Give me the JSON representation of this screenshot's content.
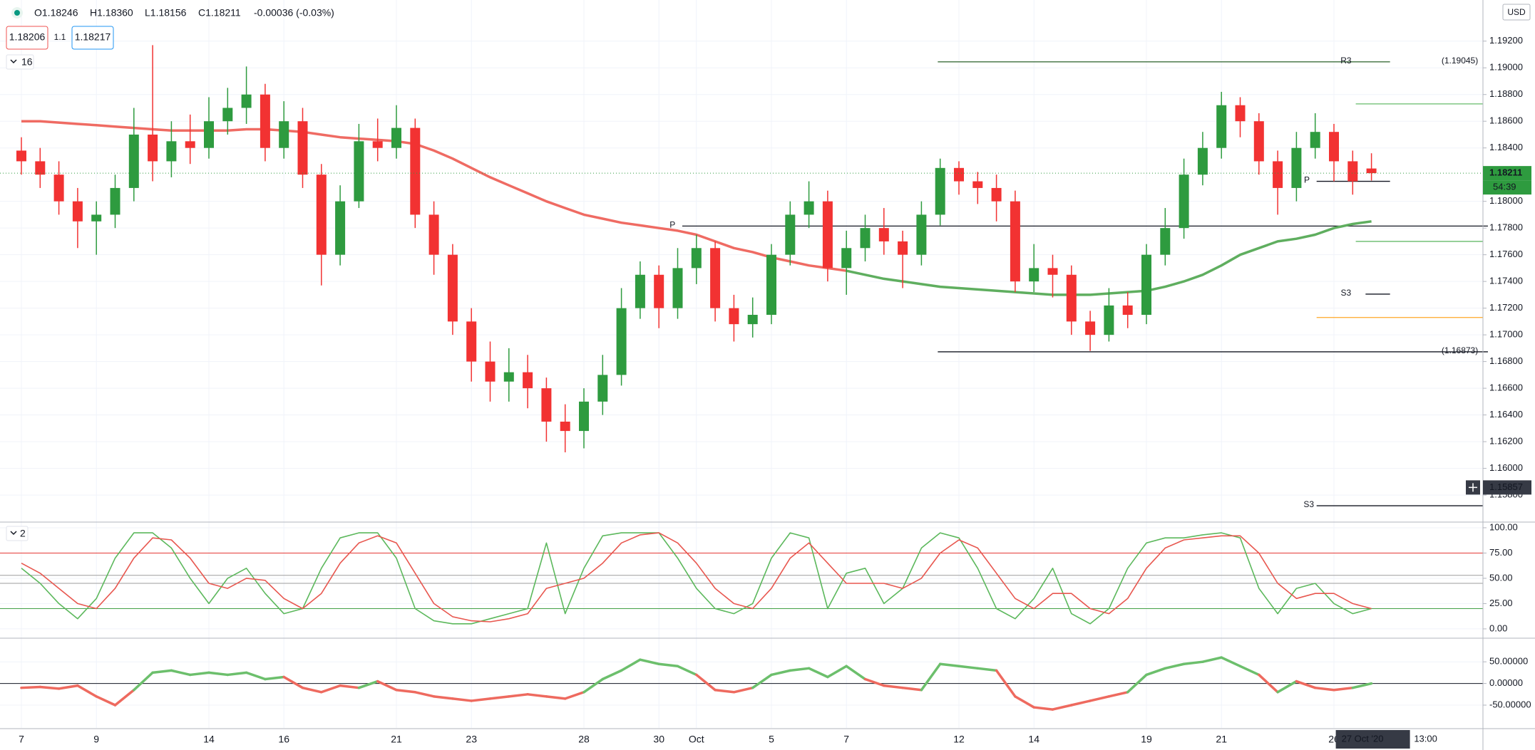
{
  "header": {
    "ohlc": [
      "O1.18246",
      "H1.18360",
      "L1.18156",
      "C1.18211",
      "-0.00036 (-0.03%)"
    ],
    "bid": "1.18206",
    "spread": "1.1",
    "ask": "1.18217",
    "main_pane_tag": "16",
    "osc_pane_tag": "2",
    "currency": "USD",
    "countdown": "54:39",
    "time_date": "27 Oct '20",
    "time_clock": "13:00"
  },
  "chart_data": [
    {
      "type": "candlestick",
      "categories": [
        "7",
        null,
        null,
        null,
        "9",
        null,
        null,
        null,
        null,
        null,
        "14",
        null,
        null,
        null,
        "16",
        null,
        null,
        null,
        null,
        null,
        "21",
        null,
        null,
        null,
        "23",
        null,
        null,
        null,
        null,
        null,
        "28",
        null,
        null,
        null,
        "30",
        null,
        "Oct",
        null,
        null,
        null,
        "5",
        null,
        null,
        null,
        "7",
        null,
        null,
        null,
        null,
        null,
        "12",
        null,
        null,
        null,
        "14",
        null,
        null,
        null,
        null,
        null,
        "19",
        null,
        null,
        null,
        "21",
        null,
        null,
        null,
        null,
        null,
        "26",
        null,
        null
      ],
      "open": [
        1.1838,
        1.183,
        1.182,
        1.18,
        1.1785,
        1.179,
        1.181,
        1.185,
        1.183,
        1.1845,
        1.184,
        1.186,
        1.187,
        1.188,
        1.184,
        1.186,
        1.182,
        1.176,
        1.18,
        1.1845,
        1.184,
        1.1855,
        1.179,
        1.176,
        1.171,
        1.168,
        1.1665,
        1.1672,
        1.166,
        1.1635,
        1.1628,
        1.165,
        1.167,
        1.172,
        1.1745,
        1.172,
        1.175,
        1.1765,
        1.172,
        1.1708,
        1.1715,
        1.176,
        1.179,
        1.18,
        1.175,
        1.1765,
        1.178,
        1.177,
        1.176,
        1.179,
        1.1825,
        1.1815,
        1.181,
        1.18,
        1.174,
        1.175,
        1.1745,
        1.171,
        1.17,
        1.1722,
        1.1715,
        1.176,
        1.178,
        1.182,
        1.184,
        1.1872,
        1.186,
        1.183,
        1.181,
        1.184,
        1.1852,
        1.183,
        1.18246
      ],
      "high": [
        1.1848,
        1.184,
        1.183,
        1.181,
        1.18,
        1.182,
        1.187,
        1.1917,
        1.186,
        1.1865,
        1.1878,
        1.1885,
        1.1901,
        1.1888,
        1.1875,
        1.187,
        1.1828,
        1.1812,
        1.1858,
        1.1862,
        1.1872,
        1.1862,
        1.18,
        1.1768,
        1.172,
        1.1695,
        1.169,
        1.1685,
        1.1668,
        1.1648,
        1.166,
        1.1685,
        1.1735,
        1.1755,
        1.1752,
        1.1765,
        1.1775,
        1.177,
        1.173,
        1.1728,
        1.1768,
        1.18,
        1.1815,
        1.1808,
        1.1778,
        1.179,
        1.1795,
        1.1778,
        1.18,
        1.1832,
        1.183,
        1.1822,
        1.182,
        1.1808,
        1.1768,
        1.176,
        1.1752,
        1.1718,
        1.1735,
        1.1732,
        1.1768,
        1.1795,
        1.1832,
        1.1852,
        1.1882,
        1.1878,
        1.1866,
        1.1838,
        1.1852,
        1.1866,
        1.1858,
        1.1838,
        1.1836
      ],
      "low": [
        1.182,
        1.181,
        1.179,
        1.1765,
        1.176,
        1.178,
        1.18,
        1.1815,
        1.1818,
        1.1828,
        1.1832,
        1.185,
        1.1858,
        1.183,
        1.1832,
        1.181,
        1.1737,
        1.1752,
        1.1795,
        1.183,
        1.1832,
        1.178,
        1.1745,
        1.17,
        1.1665,
        1.165,
        1.165,
        1.1645,
        1.162,
        1.1612,
        1.1615,
        1.164,
        1.1662,
        1.1712,
        1.1705,
        1.1712,
        1.1738,
        1.171,
        1.1695,
        1.1698,
        1.1708,
        1.1752,
        1.178,
        1.174,
        1.173,
        1.1755,
        1.176,
        1.1735,
        1.1752,
        1.1782,
        1.1805,
        1.1798,
        1.1785,
        1.1732,
        1.1732,
        1.1728,
        1.17,
        1.1688,
        1.1695,
        1.1705,
        1.1708,
        1.1752,
        1.1772,
        1.1812,
        1.1832,
        1.1848,
        1.182,
        1.179,
        1.18,
        1.1832,
        1.1815,
        1.1805,
        1.18156
      ],
      "close": [
        1.183,
        1.182,
        1.18,
        1.1785,
        1.179,
        1.181,
        1.185,
        1.183,
        1.1845,
        1.184,
        1.186,
        1.187,
        1.188,
        1.184,
        1.186,
        1.182,
        1.176,
        1.18,
        1.1845,
        1.184,
        1.1855,
        1.179,
        1.176,
        1.171,
        1.168,
        1.1665,
        1.1672,
        1.166,
        1.1635,
        1.1628,
        1.165,
        1.167,
        1.172,
        1.1745,
        1.172,
        1.175,
        1.1765,
        1.172,
        1.1708,
        1.1715,
        1.176,
        1.179,
        1.18,
        1.175,
        1.1765,
        1.178,
        1.177,
        1.176,
        1.179,
        1.1825,
        1.1815,
        1.181,
        1.18,
        1.174,
        1.175,
        1.1745,
        1.171,
        1.17,
        1.1722,
        1.1715,
        1.176,
        1.178,
        1.182,
        1.184,
        1.1872,
        1.186,
        1.183,
        1.181,
        1.184,
        1.1852,
        1.183,
        1.1815,
        1.18211
      ],
      "up_color": "#2e9b3f",
      "down_color": "#f23232",
      "overlays": [
        {
          "color": "#ef6b63",
          "values": [
            1.186,
            1.186,
            1.1859,
            1.1858,
            1.1857,
            1.1856,
            1.1855,
            1.1854,
            1.1853,
            1.1853,
            1.1853,
            1.1853,
            1.1854,
            1.1854,
            1.1853,
            1.1852,
            1.185,
            1.1848,
            1.1847,
            1.1846,
            1.1845,
            1.1843,
            1.1838,
            1.1832,
            1.1825,
            1.1818,
            1.1812,
            1.1806,
            1.18,
            1.1795,
            1.179,
            1.1787,
            1.1784,
            1.1782,
            1.178,
            1.1778,
            1.1775,
            1.177,
            1.1765,
            1.1762,
            1.1758,
            1.1755,
            1.1752,
            1.175,
            1.1748,
            null,
            null,
            null,
            null,
            null,
            null,
            null,
            null,
            null,
            null,
            null,
            null,
            null,
            null,
            null,
            null,
            null,
            null,
            null,
            null,
            null,
            null,
            null,
            null,
            null,
            null,
            null,
            null
          ]
        },
        {
          "color": "#5fae5f",
          "values": [
            null,
            null,
            null,
            null,
            null,
            null,
            null,
            null,
            null,
            null,
            null,
            null,
            null,
            null,
            null,
            null,
            null,
            null,
            null,
            null,
            null,
            null,
            null,
            null,
            null,
            null,
            null,
            null,
            null,
            null,
            null,
            null,
            null,
            null,
            null,
            null,
            null,
            null,
            null,
            null,
            null,
            null,
            null,
            null,
            1.1748,
            1.1745,
            1.1742,
            1.174,
            1.1738,
            1.1736,
            1.1735,
            1.1734,
            1.1733,
            1.1732,
            1.1731,
            1.173,
            1.173,
            1.173,
            1.1731,
            1.1732,
            1.1733,
            1.1736,
            1.174,
            1.1745,
            1.1752,
            1.176,
            1.1765,
            1.177,
            1.1772,
            1.1775,
            1.178,
            1.1783,
            1.1785
          ]
        }
      ],
      "levels": [
        {
          "label": "R3",
          "price_label": "(1.19045)",
          "value": 1.19045,
          "color": "#3c6e3c"
        },
        {
          "label": "P",
          "value": 1.17815,
          "color": "#131722"
        },
        {
          "price_label": "(1.16873)",
          "value": 1.16873,
          "color": "#131722"
        },
        {
          "label": "S3",
          "value": 1.17305,
          "color": "#131722"
        },
        {
          "label": "P",
          "value": 1.1815,
          "color": "#131722"
        },
        {
          "label": "S3",
          "value": 1.1572,
          "color": "#131722"
        },
        {
          "value": 1.1873,
          "color": "#66bb6a"
        },
        {
          "value": 1.177,
          "color": "#66bb6a"
        },
        {
          "value": 1.1713,
          "color": "#ffa726"
        }
      ],
      "crosshair": 1.15857,
      "ylim": [
        1.15603,
        1.19508
      ],
      "yticks": [
        {
          "value": 1.158,
          "label": "1.15800"
        },
        {
          "value": 1.16,
          "label": "1.16000"
        },
        {
          "value": 1.162,
          "label": "1.16200"
        },
        {
          "value": 1.164,
          "label": "1.16400"
        },
        {
          "value": 1.166,
          "label": "1.16600"
        },
        {
          "value": 1.168,
          "label": "1.16800"
        },
        {
          "value": 1.17,
          "label": "1.17000"
        },
        {
          "value": 1.172,
          "label": "1.17200"
        },
        {
          "value": 1.174,
          "label": "1.17400"
        },
        {
          "value": 1.176,
          "label": "1.17600"
        },
        {
          "value": 1.178,
          "label": "1.17800"
        },
        {
          "value": 1.18,
          "label": "1.18000"
        },
        {
          "value": 1.184,
          "label": "1.18400"
        },
        {
          "value": 1.186,
          "label": "1.18600"
        },
        {
          "value": 1.188,
          "label": "1.18800"
        },
        {
          "value": 1.19,
          "label": "1.19000"
        },
        {
          "value": 1.192,
          "label": "1.19200"
        }
      ],
      "grid": true
    },
    {
      "type": "line",
      "series": [
        {
          "color": "#5cb85c",
          "values": [
            60,
            45,
            25,
            10,
            30,
            70,
            95,
            95,
            80,
            50,
            25,
            50,
            60,
            35,
            15,
            20,
            60,
            90,
            95,
            95,
            70,
            20,
            8,
            5,
            5,
            10,
            15,
            20,
            85,
            15,
            60,
            92,
            95,
            95,
            95,
            70,
            40,
            20,
            15,
            25,
            70,
            95,
            90,
            20,
            55,
            60,
            25,
            40,
            80,
            95,
            90,
            60,
            20,
            10,
            30,
            60,
            15,
            5,
            20,
            60,
            85,
            90,
            90,
            93,
            95,
            90,
            40,
            15,
            40,
            45,
            25,
            15,
            20
          ]
        },
        {
          "color": "#e8574f",
          "values": [
            65,
            55,
            40,
            25,
            20,
            40,
            70,
            90,
            88,
            70,
            45,
            40,
            50,
            48,
            30,
            20,
            35,
            65,
            85,
            92,
            85,
            55,
            25,
            12,
            8,
            7,
            10,
            15,
            40,
            45,
            50,
            65,
            85,
            93,
            95,
            85,
            65,
            40,
            25,
            20,
            40,
            70,
            85,
            65,
            45,
            45,
            45,
            40,
            50,
            75,
            88,
            80,
            55,
            30,
            20,
            35,
            35,
            20,
            15,
            30,
            60,
            80,
            88,
            90,
            92,
            92,
            75,
            45,
            30,
            35,
            35,
            25,
            20
          ]
        }
      ],
      "levels": [
        {
          "value": 75,
          "color": "#e53935"
        },
        {
          "value": 53,
          "color": "#9e9e9e"
        },
        {
          "value": 45,
          "color": "#9e9e9e"
        },
        {
          "value": 20,
          "color": "#43a047"
        }
      ],
      "ylim": [
        -8.5,
        104.2
      ],
      "yticks": [
        {
          "value": 100,
          "label": "100.00"
        },
        {
          "value": 75,
          "label": "75.00"
        },
        {
          "value": 50,
          "label": "50.00"
        },
        {
          "value": 25,
          "label": "25.00"
        },
        {
          "value": 0,
          "label": "0.00"
        }
      ],
      "grid": true
    },
    {
      "type": "line",
      "values": [
        -10,
        -8,
        -12,
        -5,
        -30,
        -50,
        -15,
        25,
        30,
        20,
        25,
        20,
        25,
        10,
        15,
        -10,
        -20,
        -5,
        -10,
        5,
        -15,
        -20,
        -30,
        -35,
        -40,
        -35,
        -30,
        -25,
        -30,
        -35,
        -20,
        10,
        30,
        55,
        45,
        40,
        20,
        -15,
        -20,
        -10,
        20,
        30,
        35,
        15,
        40,
        10,
        -5,
        -10,
        -15,
        45,
        40,
        35,
        30,
        -30,
        -55,
        -60,
        -50,
        -40,
        -30,
        -20,
        20,
        35,
        45,
        50,
        60,
        40,
        20,
        -20,
        5,
        -10,
        -15,
        -10,
        0
      ],
      "pos_color": "#6cbf6c",
      "neg_color": "#ee6a5f",
      "levels": [
        {
          "value": 0,
          "color": "#131722"
        }
      ],
      "ylim": [
        -102.6,
        101.3
      ],
      "yticks": [
        {
          "value": 50,
          "label": "50.00000"
        },
        {
          "value": 0,
          "label": "0.00000"
        },
        {
          "value": -50,
          "label": "-50.00000"
        }
      ],
      "grid": true
    }
  ]
}
